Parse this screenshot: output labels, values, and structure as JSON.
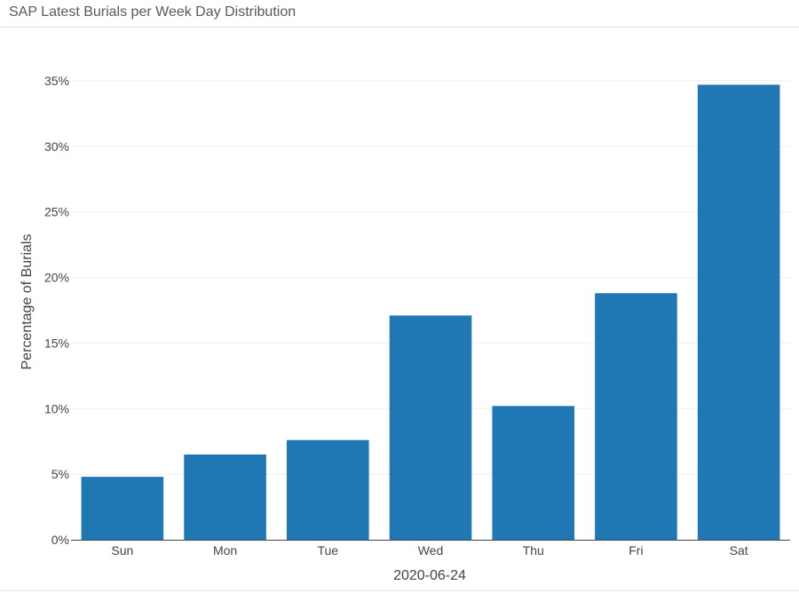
{
  "panel": {
    "title": "SAP Latest Burials per Week Day Distribution"
  },
  "colors": {
    "bar": "#1f77b4",
    "grid": "#eeeeee",
    "axis_line": "#444444"
  },
  "chart_data": {
    "type": "bar",
    "categories": [
      "Sun",
      "Mon",
      "Tue",
      "Wed",
      "Thu",
      "Fri",
      "Sat"
    ],
    "values": [
      4.8,
      6.5,
      7.6,
      17.1,
      10.2,
      18.8,
      34.7
    ],
    "xlabel": "2020-06-24",
    "ylabel": "Percentage of Burials",
    "ylim": [
      0,
      35
    ],
    "yticks": [
      0,
      5,
      10,
      15,
      20,
      25,
      30,
      35
    ],
    "ytick_labels": [
      "0%",
      "5%",
      "10%",
      "15%",
      "20%",
      "25%",
      "30%",
      "35%"
    ],
    "grid": true,
    "legend": "none"
  }
}
